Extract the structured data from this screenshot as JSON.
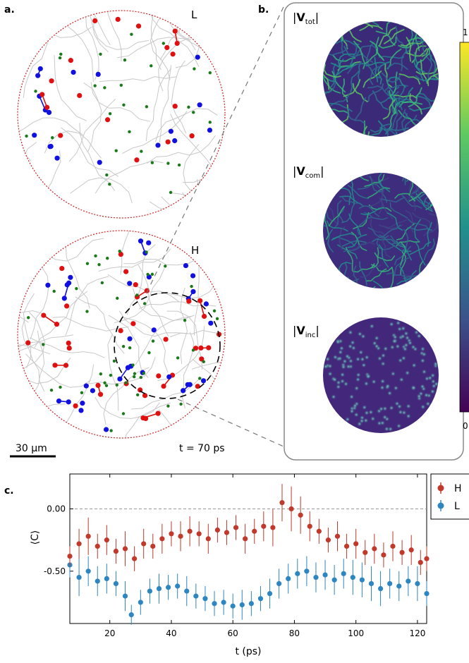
{
  "panel_a": {
    "label": "a.",
    "top_circle_label": "L",
    "bottom_circle_label": "H",
    "scalebar_label": "30 µm",
    "time_label": "t = 70 ps"
  },
  "panel_b": {
    "label": "b.",
    "maps": [
      {
        "name": "V",
        "sub": "tot"
      },
      {
        "name": "V",
        "sub": "com"
      },
      {
        "name": "V",
        "sub": "inc"
      }
    ],
    "colorbar_max": "1",
    "colorbar_min": "0"
  },
  "panel_c": {
    "label": "c."
  },
  "colors": {
    "H": "#c0392b",
    "L": "#2e86c1",
    "vortex_red": "#e01010",
    "vortex_blue": "#1010e0",
    "vortex_green": "#1a7a1a",
    "boundary": "#cc2222"
  },
  "chart_data": {
    "type": "scatter",
    "xlabel": "t (ps)",
    "ylabel": "⟨C⟩",
    "xlim": [
      7,
      123
    ],
    "ylim": [
      -0.92,
      0.28
    ],
    "xticks": [
      20,
      40,
      60,
      80,
      100,
      120
    ],
    "xtick_labels": [
      "20",
      "40",
      "60",
      "80",
      "100",
      "120"
    ],
    "yticks": [
      0.0,
      -0.5
    ],
    "ytick_labels": [
      "0.00",
      "-0.50"
    ],
    "reference_line": 0.0,
    "legend_position": "outside-right",
    "series": [
      {
        "name": "H",
        "x": [
          7,
          10,
          13,
          16,
          19,
          22,
          25,
          28,
          31,
          34,
          37,
          40,
          43,
          46,
          49,
          52,
          55,
          58,
          61,
          64,
          67,
          70,
          73,
          76,
          79,
          82,
          85,
          88,
          91,
          94,
          97,
          100,
          103,
          106,
          109,
          112,
          115,
          118,
          121,
          123
        ],
        "y": [
          -0.38,
          -0.28,
          -0.22,
          -0.3,
          -0.25,
          -0.34,
          -0.32,
          -0.4,
          -0.28,
          -0.3,
          -0.24,
          -0.2,
          -0.22,
          -0.18,
          -0.2,
          -0.24,
          -0.17,
          -0.19,
          -0.15,
          -0.24,
          -0.18,
          -0.14,
          -0.15,
          0.05,
          0.0,
          -0.05,
          -0.14,
          -0.18,
          -0.25,
          -0.22,
          -0.3,
          -0.28,
          -0.35,
          -0.32,
          -0.37,
          -0.3,
          -0.35,
          -0.33,
          -0.43,
          -0.4
        ],
        "err": [
          0.08,
          0.12,
          0.15,
          0.1,
          0.12,
          0.1,
          0.14,
          0.1,
          0.12,
          0.1,
          0.12,
          0.1,
          0.12,
          0.12,
          0.1,
          0.12,
          0.1,
          0.1,
          0.1,
          0.12,
          0.1,
          0.12,
          0.15,
          0.15,
          0.18,
          0.15,
          0.12,
          0.1,
          0.1,
          0.12,
          0.1,
          0.12,
          0.1,
          0.12,
          0.1,
          0.12,
          0.1,
          0.12,
          0.1,
          0.1
        ]
      },
      {
        "name": "L",
        "x": [
          7,
          10,
          13,
          16,
          19,
          22,
          25,
          27,
          30,
          33,
          36,
          39,
          42,
          45,
          48,
          51,
          54,
          57,
          60,
          63,
          66,
          69,
          72,
          75,
          78,
          81,
          84,
          87,
          90,
          93,
          96,
          99,
          102,
          105,
          108,
          111,
          114,
          117,
          120,
          123
        ],
        "y": [
          -0.45,
          -0.55,
          -0.5,
          -0.58,
          -0.56,
          -0.6,
          -0.7,
          -0.85,
          -0.75,
          -0.66,
          -0.64,
          -0.63,
          -0.62,
          -0.66,
          -0.7,
          -0.72,
          -0.76,
          -0.75,
          -0.78,
          -0.77,
          -0.76,
          -0.72,
          -0.68,
          -0.6,
          -0.56,
          -0.52,
          -0.5,
          -0.55,
          -0.53,
          -0.57,
          -0.52,
          -0.55,
          -0.57,
          -0.6,
          -0.64,
          -0.6,
          -0.62,
          -0.58,
          -0.6,
          -0.68
        ],
        "err": [
          0.1,
          0.15,
          0.12,
          0.12,
          0.12,
          0.1,
          0.12,
          0.08,
          0.1,
          0.1,
          0.12,
          0.1,
          0.1,
          0.12,
          0.1,
          0.1,
          0.1,
          0.1,
          0.1,
          0.12,
          0.1,
          0.1,
          0.12,
          0.12,
          0.12,
          0.12,
          0.12,
          0.12,
          0.12,
          0.12,
          0.12,
          0.14,
          0.14,
          0.14,
          0.14,
          0.12,
          0.12,
          0.12,
          0.14,
          0.1
        ]
      }
    ]
  }
}
